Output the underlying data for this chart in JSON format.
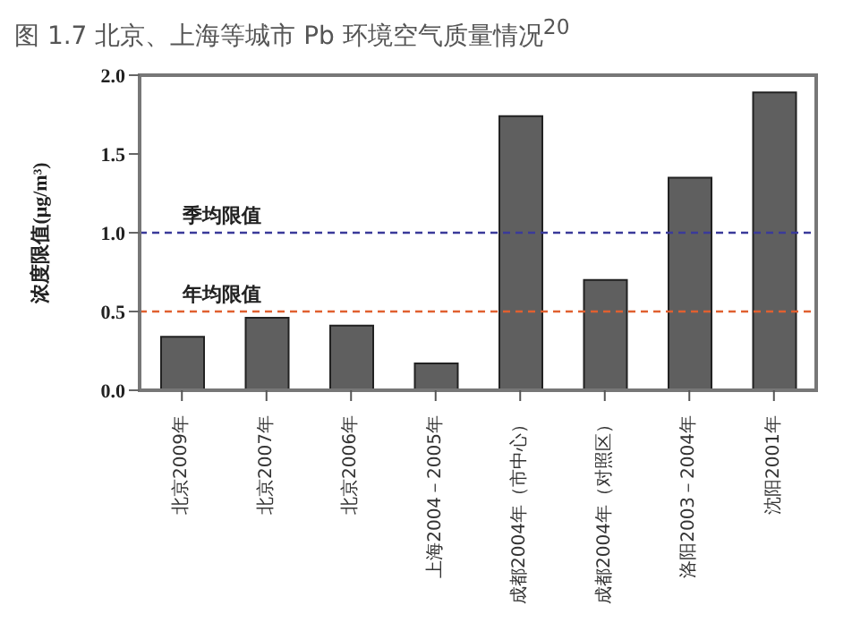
{
  "chart_data": {
    "type": "bar",
    "title": "图 1.7 北京、上海等城市 Pb 环境空气质量情况$^{20}$",
    "ylabel": "浓度限值(μg/m³)",
    "categories": [
      "北京2009年",
      "北京2007年",
      "北京2006年",
      "上海2004－2005年",
      "成都2004年（市中心）",
      "成都2004年（对照区）",
      "洛阳2003－2004年",
      "沈阳2001年"
    ],
    "values": [
      0.34,
      0.46,
      0.41,
      0.17,
      1.74,
      0.7,
      1.35,
      1.89
    ],
    "color": "#5f5f5f",
    "ylim": [
      0,
      2
    ],
    "yticks": [
      {
        "value": 0,
        "label": "0.0"
      },
      {
        "value": 0.5,
        "label": "0.5"
      },
      {
        "value": 1,
        "label": "1.0"
      },
      {
        "value": 1.5,
        "label": "1.5"
      },
      {
        "value": 2,
        "label": "2.0"
      }
    ],
    "ref_lines": [
      {
        "axis": "y",
        "value": 1,
        "label": "季均限值",
        "color": "#3a3a9a",
        "line_style": "dashed"
      },
      {
        "axis": "y",
        "value": 0.5,
        "label": "年均限值",
        "color": "#e06030",
        "line_style": "dashed"
      }
    ],
    "grid": false,
    "legend": false
  }
}
